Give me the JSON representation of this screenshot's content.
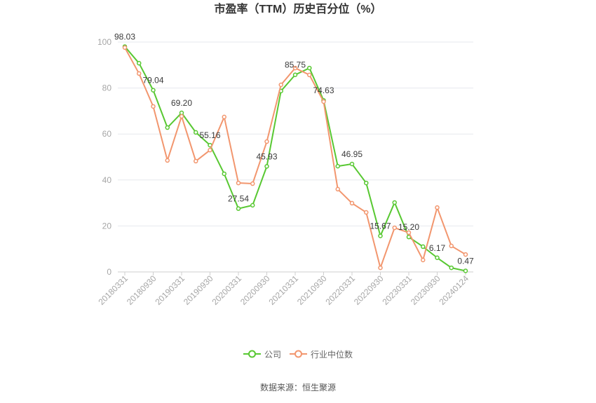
{
  "colors": {
    "grid": "#e6e8ee",
    "axis": "#cfcfcf",
    "tick_text": "#a6a6a6",
    "label_text": "#3a3a3a"
  },
  "chart_data": {
    "type": "line",
    "title": "市盈率（TTM）历史百分位（%）",
    "x_ticks": [
      "20180331",
      "20180930",
      "20190331",
      "20190930",
      "20200331",
      "20200930",
      "20210331",
      "20210930",
      "20220331",
      "20220930",
      "20230331",
      "20230930",
      "20240124"
    ],
    "y_ticks": [
      0,
      20,
      40,
      60,
      80,
      100
    ],
    "ylim": [
      0,
      100
    ],
    "grid": true,
    "legend": "bottom-center",
    "series": [
      {
        "name": "公司",
        "color": "#58c832",
        "values": [
          98.03,
          90.8,
          79.04,
          62.8,
          69.2,
          60.7,
          55.16,
          42.7,
          27.54,
          29.0,
          45.93,
          78.7,
          85.75,
          88.7,
          74.63,
          46.0,
          46.95,
          38.7,
          15.67,
          30.2,
          15.2,
          11.0,
          6.17,
          1.8,
          0.47
        ],
        "data_labels": [
          "98.03",
          "",
          "79.04",
          "",
          "69.20",
          "",
          "55.16",
          "",
          "27.54",
          "",
          "45.93",
          "",
          "85.75",
          "",
          "74.63",
          "",
          "46.95",
          "",
          "15.67",
          "",
          "15.20",
          "",
          "6.17",
          "",
          "0.47"
        ]
      },
      {
        "name": "行业中位数",
        "color": "#f2966e",
        "values": [
          97.6,
          86.3,
          72.0,
          48.5,
          67.7,
          48.2,
          53.0,
          67.4,
          38.7,
          38.4,
          56.7,
          81.4,
          88.7,
          85.7,
          74.1,
          36.0,
          29.9,
          25.9,
          1.8,
          19.2,
          17.1,
          5.2,
          28.0,
          11.3,
          7.6
        ]
      }
    ]
  },
  "source": "数据来源：恒生聚源"
}
